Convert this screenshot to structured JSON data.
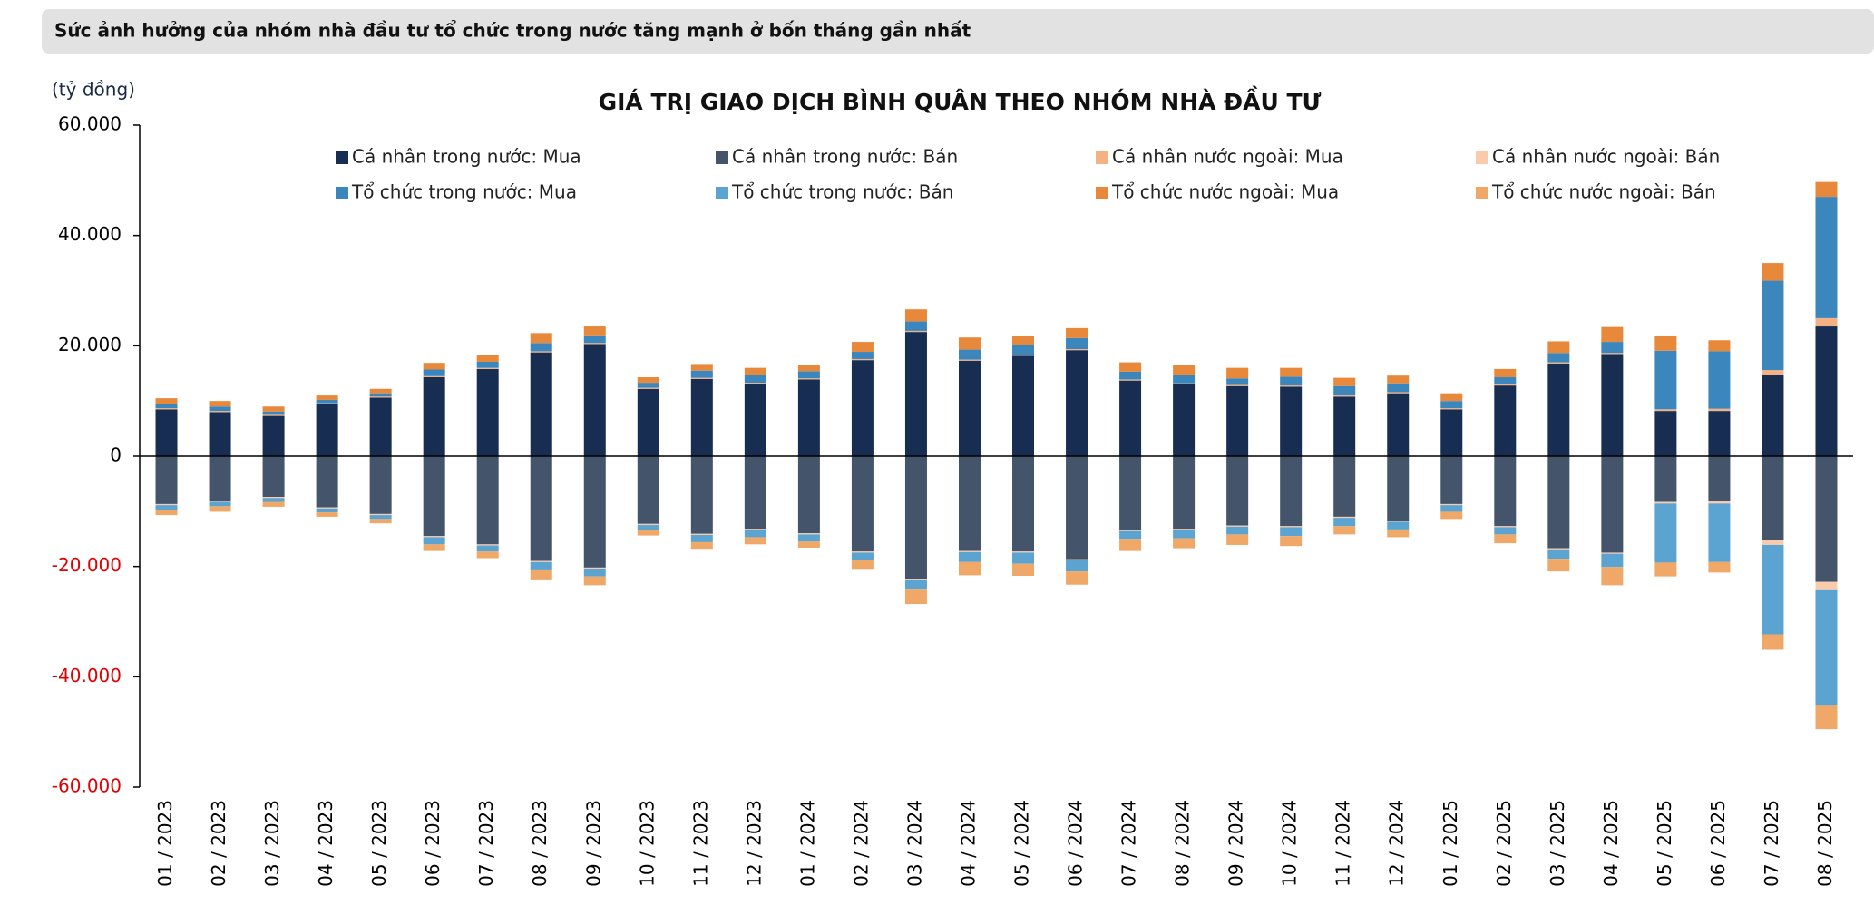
{
  "header": {
    "title": "Sức ảnh hưởng của nhóm nhà đầu tư tổ chức trong nước tăng mạnh ở bốn tháng gần nhất"
  },
  "chart_data": {
    "type": "stacked_bar",
    "title": "GIÁ TRỊ GIAO DỊCH BÌNH QUÂN THEO NHÓM NHÀ ĐẦU TƯ",
    "y_label": "(tỷ đồng)",
    "categories": [
      "01 / 2023",
      "02 / 2023",
      "03 / 2023",
      "04 / 2023",
      "05 / 2023",
      "06 / 2023",
      "07 / 2023",
      "08 / 2023",
      "09 / 2023",
      "10 / 2023",
      "11 / 2023",
      "12 / 2023",
      "01 / 2024",
      "02 / 2024",
      "03 / 2024",
      "04 / 2024",
      "05 / 2024",
      "06 / 2024",
      "07 / 2024",
      "08 / 2024",
      "09 / 2024",
      "10 / 2024",
      "11 / 2024",
      "12 / 2024",
      "01 / 2025",
      "02 / 2025",
      "03 / 2025",
      "04 / 2025",
      "05 / 2025",
      "06 / 2025",
      "07 / 2025",
      "08 / 2025"
    ],
    "ylim": [
      -60000,
      60000
    ],
    "yticks": [
      {
        "value": -60000,
        "label": "-60.000"
      },
      {
        "value": -40000,
        "label": "-40.000"
      },
      {
        "value": -20000,
        "label": "-20.000"
      },
      0,
      {
        "value": 20000,
        "label": "20.000"
      },
      {
        "value": 40000,
        "label": "40.000"
      },
      {
        "value": 60000,
        "label": "60.000"
      }
    ],
    "negative_tick_color": "#e00000",
    "series": [
      {
        "name": "Cá nhân trong nước: Mua",
        "color": "#172d52",
        "values": [
          8500,
          8000,
          7300,
          9400,
          10600,
          14300,
          15800,
          18800,
          20300,
          12200,
          14000,
          13100,
          13900,
          17400,
          22500,
          17300,
          18200,
          19200,
          13700,
          13000,
          12700,
          12600,
          10800,
          11400,
          8500,
          12800,
          16800,
          18500,
          8200,
          8200,
          14800,
          23500
        ]
      },
      {
        "name": "Cá nhân trong nước: Bán",
        "color": "#44546a",
        "values": [
          -8700,
          -8100,
          -7400,
          -9300,
          -10500,
          -14500,
          -16000,
          -19000,
          -20200,
          -12300,
          -14100,
          -13200,
          -14000,
          -17300,
          -22300,
          -17200,
          -17300,
          -18700,
          -13400,
          -13200,
          -12600,
          -12700,
          -11000,
          -11700,
          -8700,
          -12700,
          -16700,
          -17500,
          -8300,
          -8200,
          -15300,
          -22800
        ]
      },
      {
        "name": "Cá nhân nước ngoài: Mua",
        "color": "#f4b183",
        "values": [
          200,
          200,
          200,
          200,
          200,
          200,
          200,
          200,
          200,
          200,
          200,
          200,
          200,
          200,
          200,
          200,
          200,
          200,
          200,
          200,
          200,
          200,
          200,
          200,
          200,
          200,
          200,
          200,
          300,
          400,
          800,
          1500
        ]
      },
      {
        "name": "Cá nhân nước ngoài: Bán",
        "color": "#f8cbad",
        "values": [
          -200,
          -200,
          -200,
          -200,
          -200,
          -200,
          -200,
          -200,
          -200,
          -200,
          -200,
          -200,
          -200,
          -200,
          -200,
          -200,
          -200,
          -200,
          -200,
          -200,
          -200,
          -200,
          -200,
          -200,
          -200,
          -200,
          -200,
          -200,
          -300,
          -400,
          -800,
          -1500
        ]
      },
      {
        "name": "Tổ chức trong nước: Mua",
        "color": "#3b87bd",
        "values": [
          800,
          800,
          600,
          600,
          600,
          1200,
          1100,
          1500,
          1400,
          900,
          1300,
          1400,
          1300,
          1300,
          1700,
          1800,
          1700,
          2000,
          1400,
          1600,
          1200,
          1600,
          1700,
          1600,
          1300,
          1300,
          1700,
          2000,
          10600,
          10400,
          16200,
          22000
        ]
      },
      {
        "name": "Tổ chức trong nước: Bán",
        "color": "#5ba3d0",
        "values": [
          -800,
          -800,
          -700,
          -700,
          -700,
          -1300,
          -1100,
          -1500,
          -1400,
          -900,
          -1300,
          -1300,
          -1300,
          -1300,
          -1700,
          -1800,
          -2000,
          -2000,
          -1400,
          -1500,
          -1400,
          -1600,
          -1500,
          -1400,
          -1200,
          -1300,
          -1700,
          -2400,
          -10700,
          -10600,
          -16200,
          -20800
        ]
      },
      {
        "name": "Tổ chức nước ngoài: Mua",
        "color": "#e8883a",
        "values": [
          1000,
          1000,
          900,
          800,
          800,
          1200,
          1200,
          1800,
          1600,
          1000,
          1200,
          1300,
          1100,
          1800,
          2200,
          2200,
          1600,
          1800,
          1700,
          1800,
          1900,
          1600,
          1500,
          1400,
          1400,
          1500,
          2100,
          2700,
          2700,
          2000,
          3200,
          2700
        ]
      },
      {
        "name": "Tổ chức nước ngoài: Bán",
        "color": "#f0a868",
        "values": [
          -1000,
          -1000,
          -900,
          -800,
          -800,
          -1200,
          -1200,
          -1800,
          -1600,
          -1000,
          -1200,
          -1300,
          -1100,
          -1800,
          -2600,
          -2400,
          -2200,
          -2400,
          -2200,
          -1800,
          -1900,
          -1800,
          -1500,
          -1400,
          -1300,
          -1600,
          -2300,
          -3300,
          -2500,
          -1900,
          -2800,
          -4400
        ]
      }
    ]
  }
}
